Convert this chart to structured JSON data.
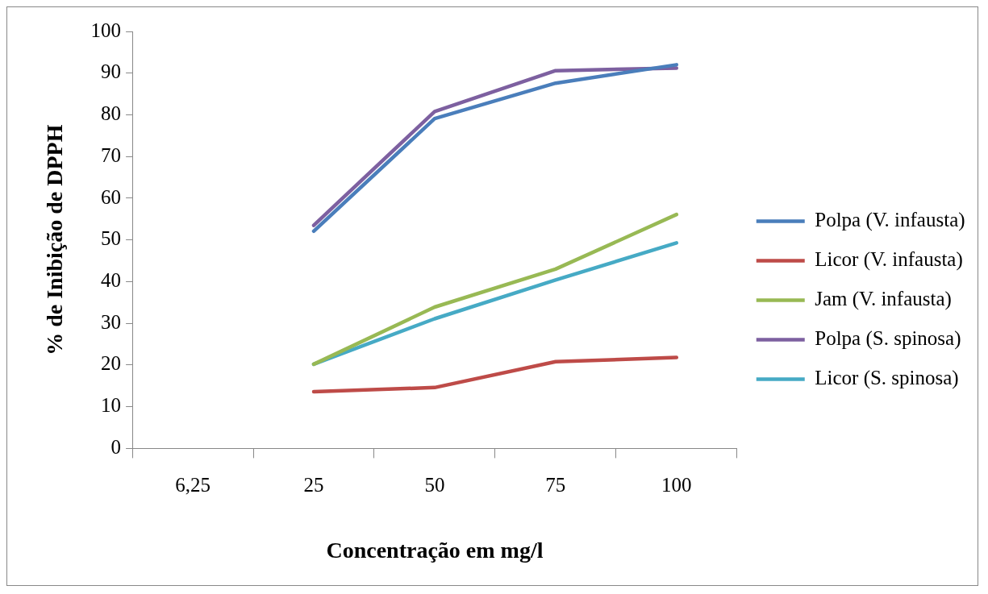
{
  "chart_data": {
    "type": "line",
    "xlabel": "Concentração em mg/l",
    "ylabel": "% de Inibição de DPPH",
    "categories": [
      "6,25",
      "25",
      "50",
      "75",
      "100"
    ],
    "series": [
      {
        "name": "Polpa (V. infausta)",
        "color": "#4a7ebb",
        "values": [
          null,
          52.1,
          79.1,
          87.6,
          92.0
        ]
      },
      {
        "name": "Licor (V. infausta)",
        "color": "#be4b48",
        "values": [
          null,
          13.6,
          14.6,
          20.8,
          21.8
        ]
      },
      {
        "name": "Jam (V. infausta)",
        "color": "#98b954",
        "values": [
          null,
          20.2,
          33.9,
          43.0,
          56.1
        ]
      },
      {
        "name": "Polpa (S. spinosa)",
        "color": "#7d60a0",
        "values": [
          null,
          53.5,
          80.8,
          90.6,
          91.2
        ]
      },
      {
        "name": "Licor (S. spinosa)",
        "color": "#46aac5",
        "values": [
          null,
          20.2,
          31.1,
          40.4,
          49.3
        ]
      }
    ],
    "ylim": [
      0,
      100
    ],
    "yticks": [
      0,
      10,
      20,
      30,
      40,
      50,
      60,
      70,
      80,
      90,
      100
    ],
    "grid": false,
    "legend": "right",
    "marker": "none",
    "line_style": "solid"
  }
}
